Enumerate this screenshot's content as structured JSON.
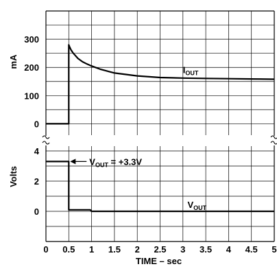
{
  "chart_data": {
    "type": "line",
    "xlabel": "TIME – sec",
    "xlim": [
      0,
      5
    ],
    "x_ticks": [
      "0",
      "0.5",
      "1",
      "1.5",
      "2",
      "2.5",
      "3",
      "3.5",
      "4",
      "4.5",
      "5"
    ],
    "grid": true,
    "panels": [
      {
        "id": "current",
        "ylabel": "mA",
        "ylim": [
          -50,
          400
        ],
        "y_ticks": [
          "0",
          "100",
          "200",
          "300"
        ],
        "series": [
          {
            "name": "IOUT",
            "x": [
              0,
              0.5,
              0.5,
              0.52,
              0.55,
              0.6,
              0.7,
              0.8,
              0.9,
              1.0,
              1.2,
              1.5,
              2.0,
              2.5,
              3.0,
              3.5,
              4.0,
              4.5,
              5.0
            ],
            "y": [
              0,
              0,
              280,
              272,
              262,
              250,
              232,
              220,
              212,
              205,
              193,
              180,
              170,
              164,
              162,
              161,
              160,
              159,
              158
            ]
          }
        ],
        "annotations": [
          {
            "text": "I",
            "sub": "OUT",
            "x": 3.0,
            "y": 192
          }
        ]
      },
      {
        "id": "voltage",
        "ylabel": "Volts",
        "ylim": [
          -2,
          4.5
        ],
        "y_ticks": [
          "0",
          "2",
          "4"
        ],
        "series": [
          {
            "name": "VOUT",
            "x": [
              0,
              0.5,
              0.5,
              0.52,
              0.97,
              1.0,
              5.0
            ],
            "y": [
              3.3,
              3.3,
              0.1,
              0.1,
              0.1,
              0.0,
              0.0
            ]
          }
        ],
        "annotations": [
          {
            "text": "V",
            "sub": "OUT",
            "tail": " = +3.3V",
            "x": 0.95,
            "y": 3.3,
            "arrow_to_x": 0.5
          },
          {
            "text": "V",
            "sub": "OUT",
            "x": 3.1,
            "y": 0.45
          }
        ]
      }
    ]
  }
}
